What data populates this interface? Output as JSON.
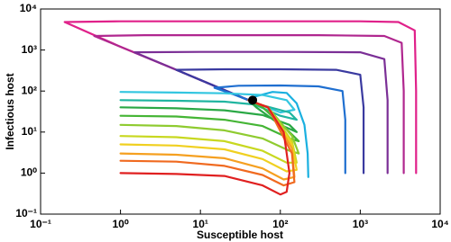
{
  "chart_data": {
    "type": "line",
    "xlabel": "Susceptible host",
    "ylabel": "Infectious host",
    "xscale": "log",
    "yscale": "log",
    "xlim": [
      0.1,
      10000
    ],
    "ylim": [
      0.1,
      10000
    ],
    "xticks": [
      {
        "value": 0.1,
        "label": "10⁻¹"
      },
      {
        "value": 1,
        "label": "10⁰"
      },
      {
        "value": 10,
        "label": "10¹"
      },
      {
        "value": 100,
        "label": "10²"
      },
      {
        "value": 1000,
        "label": "10³"
      },
      {
        "value": 10000,
        "label": "10⁴"
      }
    ],
    "yticks": [
      {
        "value": 0.1,
        "label": "10⁻¹"
      },
      {
        "value": 1,
        "label": "10⁰"
      },
      {
        "value": 10,
        "label": "10¹"
      },
      {
        "value": 100,
        "label": "10²"
      },
      {
        "value": 1000,
        "label": "10³"
      },
      {
        "value": 10000,
        "label": "10⁴"
      }
    ],
    "series": [
      {
        "color": "#e0218a",
        "x": [
          5000,
          5000,
          4800,
          3000,
          1000,
          100,
          10,
          1,
          0.2,
          1,
          5,
          20,
          40
        ],
        "values": [
          1,
          100,
          3000,
          4800,
          5000,
          5000,
          5000,
          5000,
          4800,
          1200,
          330,
          105,
          60
        ]
      },
      {
        "color": "#b0278f",
        "x": [
          3500,
          3500,
          3300,
          2000,
          300,
          20,
          2,
          0.47,
          1,
          5,
          20,
          40
        ],
        "values": [
          1,
          100,
          1500,
          2200,
          2300,
          2300,
          2300,
          2200,
          1200,
          330,
          105,
          60
        ]
      },
      {
        "color": "#7b2f96",
        "x": [
          2200,
          2200,
          2000,
          1000,
          100,
          10,
          1.5,
          5,
          20,
          40
        ],
        "values": [
          1,
          60,
          600,
          880,
          900,
          900,
          880,
          330,
          105,
          60
        ]
      },
      {
        "color": "#3a3aa0",
        "x": [
          1100,
          1100,
          1000,
          500,
          100,
          20,
          5,
          20,
          40
        ],
        "values": [
          1,
          40,
          250,
          330,
          340,
          340,
          330,
          105,
          60
        ]
      },
      {
        "color": "#1f6fd0",
        "x": [
          650,
          650,
          600,
          300,
          100,
          30,
          15,
          25,
          40
        ],
        "values": [
          1,
          20,
          100,
          130,
          137,
          135,
          120,
          85,
          60
        ]
      },
      {
        "color": "#1ab0e0",
        "x": [
          224,
          220,
          200,
          160,
          120,
          80,
          50,
          40
        ],
        "values": [
          0.8,
          3,
          15,
          50,
          90,
          95,
          75,
          60
        ]
      },
      {
        "color": "#33c6e0",
        "x": [
          1,
          5,
          20,
          60,
          120,
          150,
          100,
          50,
          40
        ],
        "values": [
          95,
          92,
          88,
          80,
          60,
          35,
          30,
          50,
          60
        ]
      },
      {
        "color": "#20b5a0",
        "x": [
          1,
          5,
          20,
          60,
          130,
          160,
          100,
          50,
          40
        ],
        "values": [
          60,
          58,
          55,
          45,
          30,
          20,
          25,
          45,
          60
        ]
      },
      {
        "color": "#2aa845",
        "x": [
          1,
          5,
          20,
          60,
          130,
          160,
          100,
          50,
          40
        ],
        "values": [
          40,
          38,
          34,
          26,
          15,
          10,
          15,
          40,
          60
        ]
      },
      {
        "color": "#45b535",
        "x": [
          1,
          5,
          20,
          60,
          130,
          170,
          130,
          60,
          40
        ],
        "values": [
          25,
          24,
          20,
          14,
          7,
          6,
          10,
          40,
          60
        ]
      },
      {
        "color": "#8fcb30",
        "x": [
          1,
          5,
          20,
          60,
          130,
          170,
          140,
          70,
          40
        ],
        "values": [
          15,
          14,
          11,
          7,
          3.5,
          3,
          8,
          40,
          60
        ]
      },
      {
        "color": "#c8d820",
        "x": [
          1,
          5,
          20,
          60,
          120,
          160,
          140,
          70,
          40
        ],
        "values": [
          8,
          7.5,
          6,
          3.5,
          1.8,
          1.8,
          6,
          40,
          60
        ]
      },
      {
        "color": "#f0d020",
        "x": [
          1,
          5,
          20,
          60,
          120,
          160,
          140,
          70,
          40
        ],
        "values": [
          5,
          4.7,
          3.8,
          2.2,
          1.1,
          1.2,
          5,
          40,
          60
        ]
      },
      {
        "color": "#f5a020",
        "x": [
          1,
          5,
          20,
          60,
          110,
          150,
          140,
          70,
          40
        ],
        "values": [
          3,
          2.8,
          2.3,
          1.3,
          0.7,
          0.8,
          4,
          40,
          60
        ]
      },
      {
        "color": "#f06a20",
        "x": [
          1,
          5,
          20,
          60,
          110,
          150,
          140,
          70,
          40
        ],
        "values": [
          2,
          1.9,
          1.5,
          0.9,
          0.5,
          0.6,
          3,
          40,
          60
        ]
      },
      {
        "color": "#e02020",
        "x": [
          1,
          5,
          20,
          60,
          100,
          120,
          130,
          110,
          70,
          40
        ],
        "values": [
          1,
          0.95,
          0.85,
          0.5,
          0.3,
          0.35,
          1,
          10,
          40,
          60
        ]
      }
    ],
    "equilibrium": {
      "x": 45,
      "y": 60,
      "color": "#000000"
    }
  }
}
